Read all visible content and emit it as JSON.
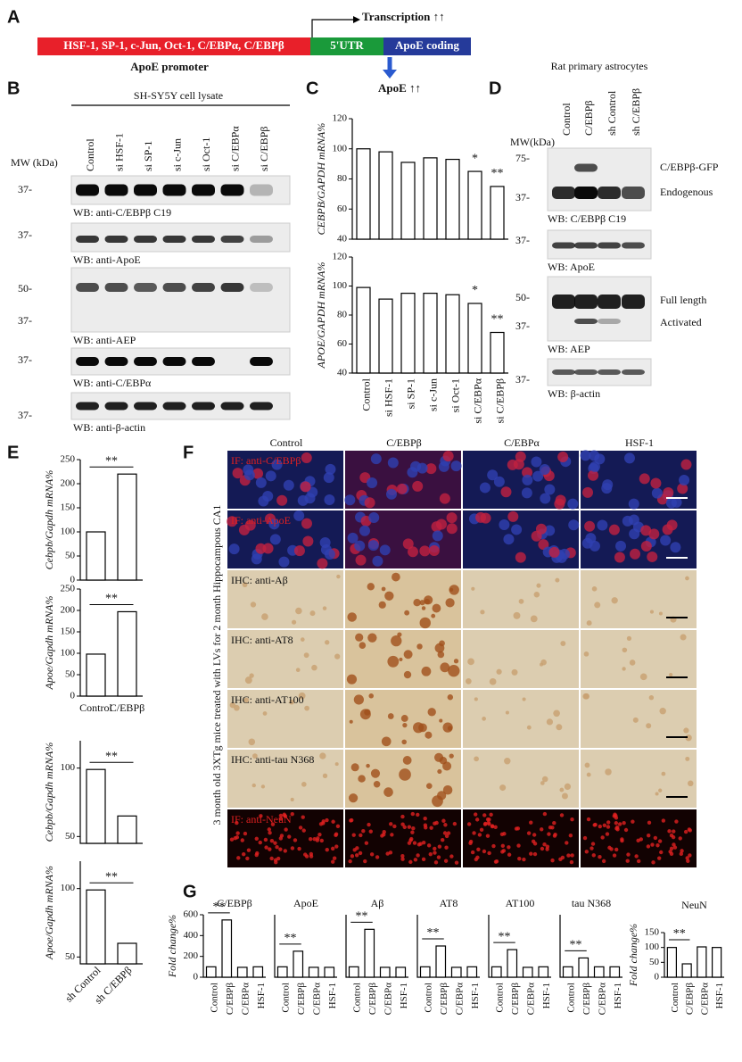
{
  "panel_a": {
    "label": "A",
    "promoter_elements": "HSF-1, SP-1, c-Jun, Oct-1, C/EBPα, C/EBPβ",
    "utr": "5'UTR",
    "coding": "ApoE coding",
    "promoter": "ApoE promoter",
    "transcription": "Transcription ↑↑",
    "product": "ApoE ↑↑"
  },
  "panel_b": {
    "label": "B",
    "title": "SH-SY5Y cell lysate",
    "mw": "MW (kDa)",
    "lanes": [
      "Control",
      "si HSF-1",
      "si SP-1",
      "si c-Jun",
      "si Oct-1",
      "si C/EBPα",
      "si C/EBPβ"
    ],
    "blots": [
      {
        "markers": [
          "37-"
        ],
        "caption": "WB: anti-C/EBPβ C19"
      },
      {
        "markers": [
          "37-"
        ],
        "caption": "WB: anti-ApoE"
      },
      {
        "markers": [
          "50-",
          "37-"
        ],
        "caption": "WB: anti-AEP"
      },
      {
        "markers": [
          "37-"
        ],
        "caption": "WB: anti-C/EBPα"
      },
      {
        "markers": [
          "37-"
        ],
        "caption": "WB: anti-β-actin"
      }
    ]
  },
  "panel_c": {
    "label": "C"
  },
  "panel_d": {
    "label": "D",
    "title": "Rat primary astrocytes",
    "mw": "MW(kDa)",
    "lanes": [
      "Control",
      "C/EBPβ",
      "sh Control",
      "sh C/EBPβ"
    ],
    "blots": [
      {
        "markers": [
          "75-",
          "37-"
        ],
        "bands": [
          "C/EBPβ-GFP",
          "Endogenous"
        ],
        "caption": "WB: C/EBPβ C19"
      },
      {
        "markers": [
          "37-"
        ],
        "caption": "WB: ApoE"
      },
      {
        "markers": [
          "50-",
          "37-"
        ],
        "bands": [
          "Full length",
          "Activated"
        ],
        "caption": "WB: AEP"
      },
      {
        "markers": [
          "37-"
        ],
        "caption": "WB: β-actin"
      }
    ]
  },
  "panel_e": {
    "label": "E"
  },
  "panel_f": {
    "label": "F",
    "side_label": "3 month old 3XTg mice treated with LVs for 2 month Hippocampous CA1",
    "columns": [
      "Control",
      "C/EBPβ",
      "C/EBPα",
      "HSF-1"
    ],
    "rows": [
      "IF: anti-C/EBPβ",
      "IF: anti-ApoE",
      "IHC: anti-Aβ",
      "IHC: anti-AT8",
      "IHC: anti-AT100",
      "IHC: anti-tau N368",
      "IF: anti-NeuN"
    ]
  },
  "panel_g": {
    "label": "G"
  },
  "chart_data": [
    {
      "type": "bar",
      "ylabel": "CEBPB/GAPDH mRNA%",
      "categories": [
        null,
        null,
        null,
        null,
        null,
        null,
        null
      ],
      "values": [
        100,
        98,
        91,
        94,
        93,
        85,
        75
      ],
      "significance": [
        null,
        null,
        null,
        null,
        null,
        "*",
        "**"
      ],
      "ylim": [
        40,
        120
      ],
      "yticks": [
        40,
        60,
        80,
        100,
        120
      ],
      "color": "#ffffff"
    },
    {
      "type": "bar",
      "ylabel": "APOE/GAPDH mRNA%",
      "categories": [
        "Control",
        "si HSF-1",
        "si SP-1",
        "si c-Jun",
        "si Oct-1",
        "si C/EBPα",
        "si C/EBPβ"
      ],
      "values": [
        99,
        91,
        95,
        95,
        94,
        88,
        68
      ],
      "significance": [
        null,
        null,
        null,
        null,
        null,
        "*",
        "**"
      ],
      "ylim": [
        40,
        120
      ],
      "yticks": [
        40,
        60,
        80,
        100,
        120
      ],
      "color": "#ffffff"
    },
    {
      "type": "bar",
      "ylabel": "Cebpb/Gapdh mRNA%",
      "categories": [
        null,
        null
      ],
      "values": [
        100,
        220
      ],
      "significance": [
        null,
        "**"
      ],
      "ylim": [
        0,
        250
      ],
      "yticks": [
        0,
        50,
        100,
        150,
        200,
        250
      ],
      "color": "#ffffff"
    },
    {
      "type": "bar",
      "ylabel": "Apoe/Gapdh mRNA%",
      "categories": [
        "Control",
        "C/EBPβ"
      ],
      "values": [
        98,
        197
      ],
      "significance": [
        null,
        "**"
      ],
      "ylim": [
        0,
        250
      ],
      "yticks": [
        0,
        50,
        100,
        150,
        200,
        250
      ],
      "color": "#ffffff"
    },
    {
      "type": "bar",
      "ylabel": "Cebpb/Gapdh mRNA%",
      "categories": [
        null,
        null
      ],
      "values": [
        99,
        65
      ],
      "significance": [
        null,
        "**"
      ],
      "ylim": [
        45,
        120
      ],
      "yticks": [
        50,
        100
      ],
      "color": "#ffffff"
    },
    {
      "type": "bar",
      "ylabel": "Apoe/Gapdh mRNA%",
      "categories": [
        "sh Control",
        "sh C/EBPβ"
      ],
      "values": [
        99,
        60
      ],
      "significance": [
        null,
        "**"
      ],
      "ylim": [
        45,
        120
      ],
      "yticks": [
        50,
        100
      ],
      "color": "#ffffff"
    },
    {
      "type": "bar",
      "title": "C/EBPβ",
      "ylabel": "Fold change%",
      "categories": [
        "Control",
        "C/EBPβ",
        "C/EBPα",
        "HSF-1"
      ],
      "values": [
        100,
        550,
        95,
        100
      ],
      "significance": [
        null,
        "**",
        null,
        null
      ],
      "ylim": [
        0,
        600
      ],
      "yticks": [
        0,
        200,
        400,
        600
      ],
      "color": "#ffffff"
    },
    {
      "type": "bar",
      "title": "ApoE",
      "categories": [
        "Control",
        "C/EBPβ",
        "C/EBPα",
        "HSF-1"
      ],
      "values": [
        100,
        250,
        95,
        95
      ],
      "significance": [
        null,
        "**",
        null,
        null
      ],
      "ylim": [
        0,
        600
      ],
      "color": "#ffffff"
    },
    {
      "type": "bar",
      "title": "Aβ",
      "categories": [
        "Control",
        "C/EBPβ",
        "C/EBPα",
        "HSF-1"
      ],
      "values": [
        100,
        460,
        95,
        95
      ],
      "significance": [
        null,
        "**",
        null,
        null
      ],
      "ylim": [
        0,
        600
      ],
      "color": "#ffffff"
    },
    {
      "type": "bar",
      "title": "AT8",
      "categories": [
        "Control",
        "C/EBPβ",
        "C/EBPα",
        "HSF-1"
      ],
      "values": [
        100,
        300,
        95,
        100
      ],
      "significance": [
        null,
        "**",
        null,
        null
      ],
      "ylim": [
        0,
        600
      ],
      "color": "#ffffff"
    },
    {
      "type": "bar",
      "title": "AT100",
      "categories": [
        "Control",
        "C/EBPβ",
        "C/EBPα",
        "HSF-1"
      ],
      "values": [
        100,
        265,
        95,
        100
      ],
      "significance": [
        null,
        "**",
        null,
        null
      ],
      "ylim": [
        0,
        600
      ],
      "color": "#ffffff"
    },
    {
      "type": "bar",
      "title": "tau N368",
      "categories": [
        "Control",
        "C/EBPβ",
        "C/EBPα",
        "HSF-1"
      ],
      "values": [
        100,
        185,
        100,
        100
      ],
      "significance": [
        null,
        "**",
        null,
        null
      ],
      "ylim": [
        0,
        600
      ],
      "color": "#ffffff"
    },
    {
      "type": "bar",
      "title": "NeuN",
      "ylabel": "Fold change%",
      "categories": [
        "Control",
        "C/EBPβ",
        "C/EBPα",
        "HSF-1"
      ],
      "values": [
        100,
        45,
        102,
        100
      ],
      "significance": [
        null,
        "**",
        null,
        null
      ],
      "ylim": [
        0,
        150
      ],
      "yticks": [
        0,
        50,
        100,
        150
      ],
      "color": "#ffffff"
    }
  ]
}
